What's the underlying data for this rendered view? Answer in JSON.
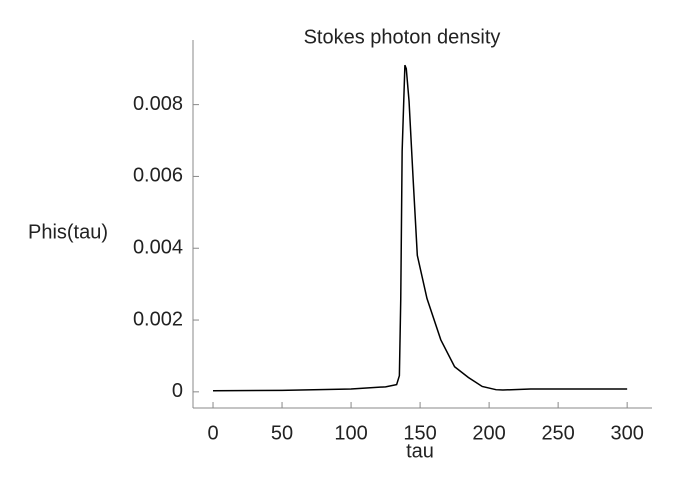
{
  "chart_data": {
    "type": "line",
    "title": "Stokes photon density",
    "x_label": "tau",
    "y_label": "Phis(tau)",
    "x": [
      0,
      50,
      100,
      125,
      133,
      135,
      136,
      137,
      139,
      140,
      142,
      145,
      148,
      155,
      165,
      175,
      185,
      195,
      205,
      210,
      230,
      300
    ],
    "series": [
      {
        "name": "Phis(tau)",
        "color": "#000000",
        "values": [
          3e-05,
          4e-05,
          8e-05,
          0.00014,
          0.0002,
          0.00045,
          0.0026,
          0.0067,
          0.0091,
          0.009,
          0.0081,
          0.0059,
          0.0038,
          0.0026,
          0.00145,
          0.0007,
          0.0004,
          0.00015,
          6e-05,
          5e-05,
          8e-05,
          8e-05
        ]
      }
    ],
    "xlim": [
      -14.5,
      318
    ],
    "ylim": [
      -0.00045,
      0.0098
    ],
    "xticks": [
      0,
      50,
      100,
      150,
      200,
      250,
      300
    ],
    "yticks": [
      0,
      0.002,
      0.004,
      0.006,
      0.008
    ]
  }
}
